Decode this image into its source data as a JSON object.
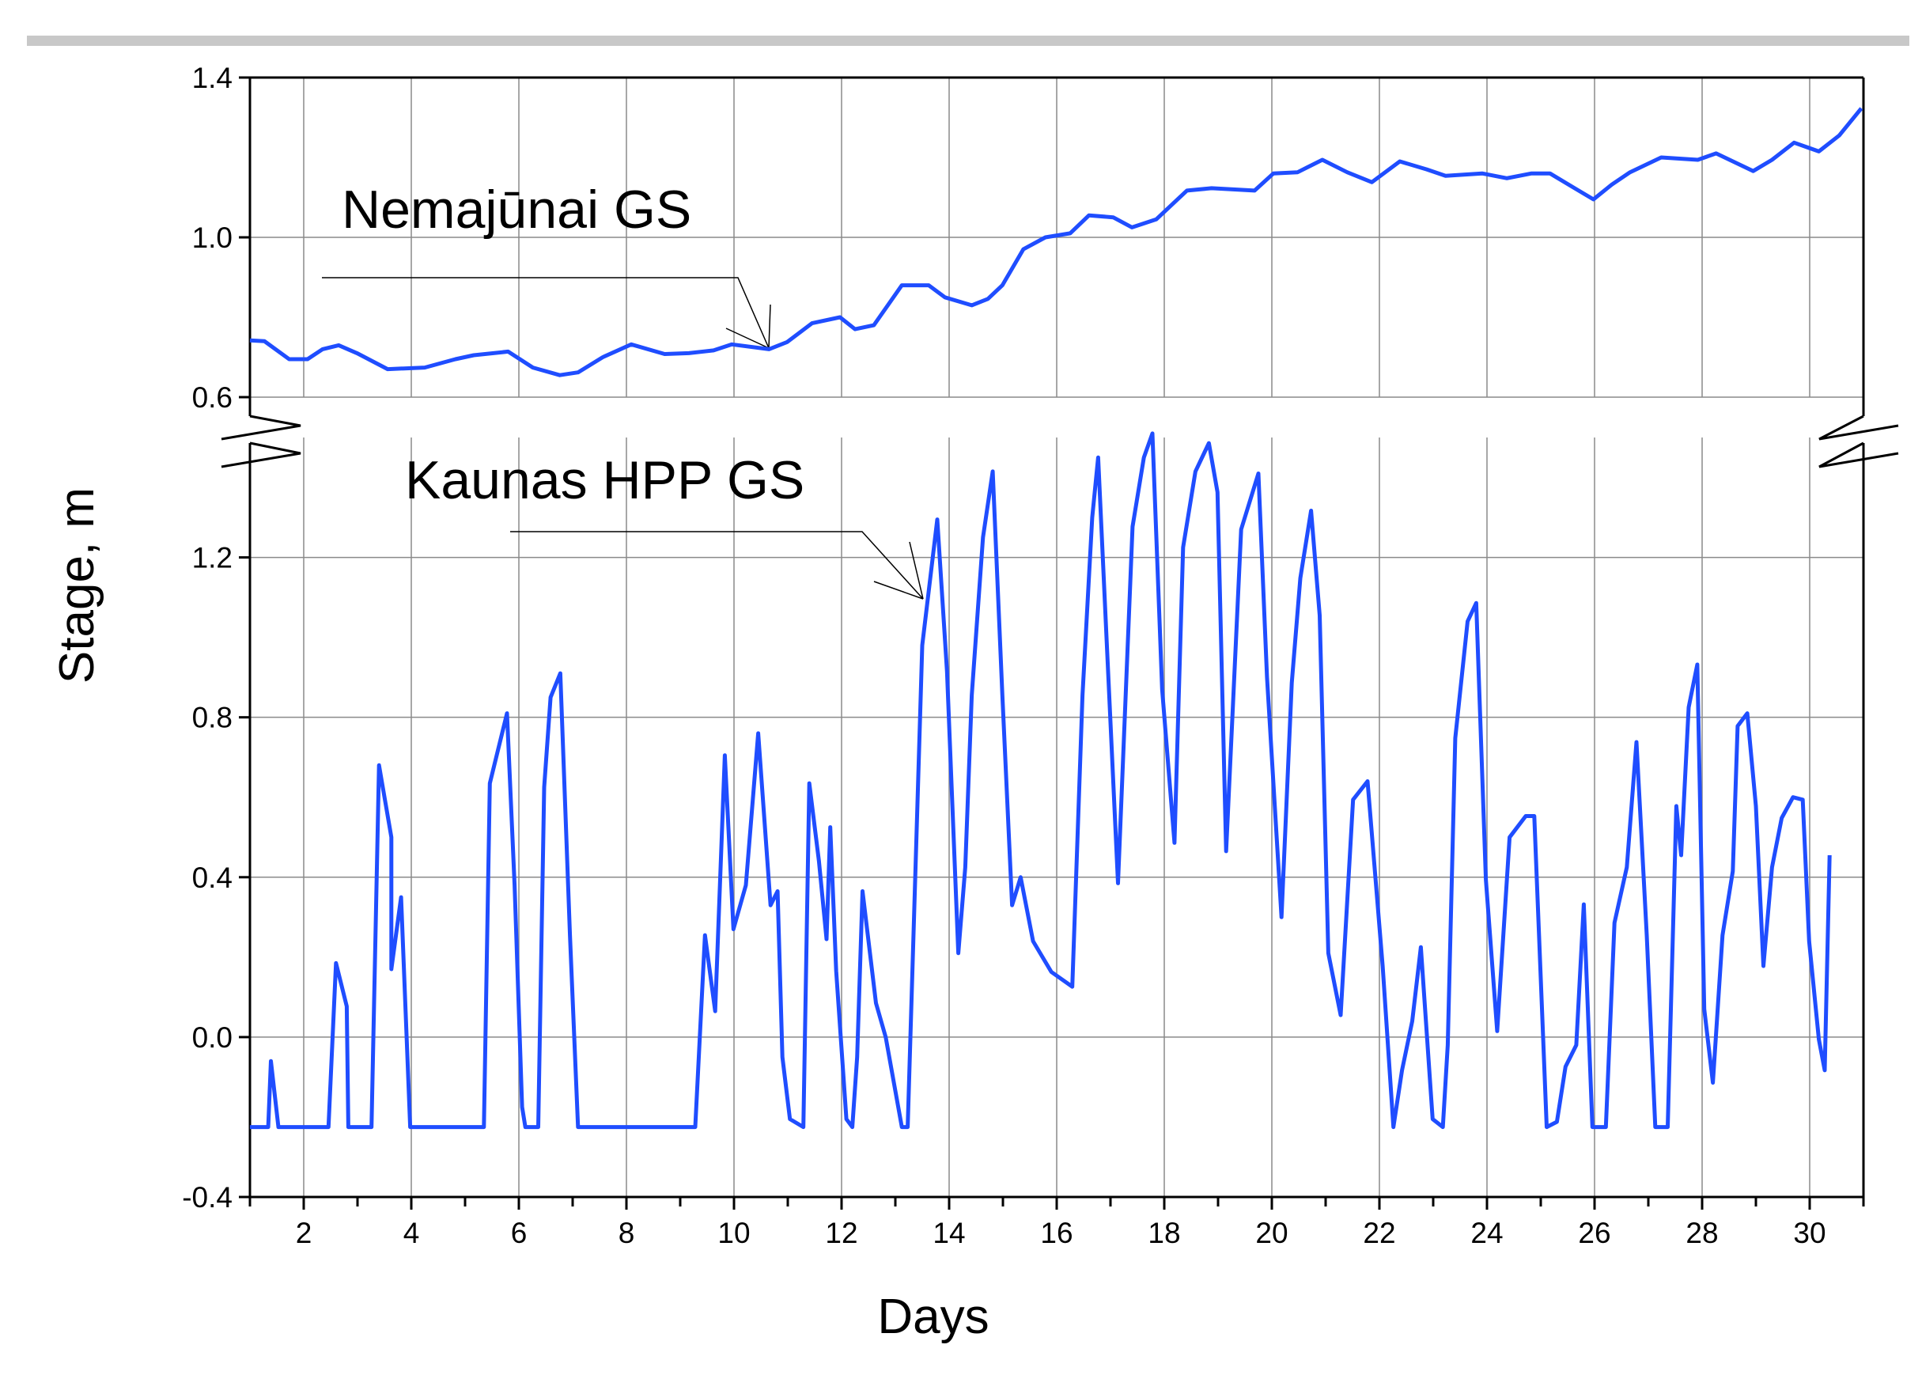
{
  "chart_data": [
    {
      "type": "line",
      "grid": true,
      "xlim": [
        1,
        31
      ],
      "ylim": [
        0.6,
        1.4
      ],
      "yticks": [
        0.6,
        {
          "value": 1.0,
          "label": "1.0"
        },
        1.4
      ],
      "x": [
        1.0,
        1.27,
        1.73,
        2.07,
        2.35,
        2.65,
        2.99,
        3.56,
        4.25,
        4.82,
        5.16,
        5.8,
        6.26,
        6.76,
        7.1,
        7.56,
        8.09,
        8.71,
        9.16,
        9.62,
        9.96,
        10.65,
        10.99,
        11.45,
        11.97,
        12.25,
        12.6,
        13.12,
        13.62,
        13.92,
        14.42,
        14.72,
        14.99,
        15.38,
        15.79,
        16.25,
        16.6,
        17.05,
        17.4,
        17.85,
        18.42,
        18.88,
        19.68,
        20.03,
        20.48,
        20.94,
        21.4,
        21.86,
        22.38,
        22.88,
        23.23,
        23.91,
        24.37,
        24.83,
        25.17,
        25.63,
        25.98,
        26.32,
        26.66,
        27.24,
        27.92,
        28.26,
        28.95,
        29.3,
        29.71,
        30.17,
        30.55,
        30.96
      ],
      "series": [
        {
          "name": "Nemajūnai GS",
          "color": "#1f4dff",
          "values": [
            0.742,
            0.74,
            0.695,
            0.695,
            0.72,
            0.73,
            0.71,
            0.67,
            0.674,
            0.695,
            0.705,
            0.714,
            0.674,
            0.655,
            0.662,
            0.7,
            0.732,
            0.708,
            0.71,
            0.717,
            0.732,
            0.72,
            0.738,
            0.785,
            0.8,
            0.77,
            0.78,
            0.88,
            0.88,
            0.85,
            0.83,
            0.846,
            0.88,
            0.97,
            1.0,
            1.01,
            1.055,
            1.05,
            1.025,
            1.045,
            1.117,
            1.123,
            1.117,
            1.16,
            1.163,
            1.194,
            1.163,
            1.138,
            1.19,
            1.17,
            1.154,
            1.16,
            1.148,
            1.16,
            1.16,
            1.123,
            1.095,
            1.132,
            1.163,
            1.2,
            1.194,
            1.21,
            1.166,
            1.194,
            1.237,
            1.215,
            1.255,
            1.323
          ]
        }
      ]
    },
    {
      "type": "line",
      "grid": true,
      "xlim": [
        1,
        31
      ],
      "ylim": [
        -0.4,
        1.5
      ],
      "xlabel": "Days",
      "ylabel": "Stage, m",
      "xticks": [
        2,
        4,
        6,
        8,
        10,
        12,
        14,
        16,
        18,
        20,
        22,
        24,
        26,
        28,
        30
      ],
      "xminorticks": [
        1,
        3,
        5,
        7,
        9,
        11,
        13,
        15,
        17,
        19,
        21,
        23,
        25,
        27,
        29,
        31
      ],
      "yticks": [
        -0.4,
        {
          "value": 0.0,
          "label": "0.0"
        },
        0.4,
        0.8,
        1.2
      ],
      "x": [
        1.0,
        1.34,
        1.39,
        1.53,
        2.46,
        2.6,
        2.8,
        2.83,
        3.26,
        3.4,
        3.63,
        3.63,
        3.81,
        3.98,
        5.35,
        5.46,
        5.78,
        5.92,
        6.06,
        6.12,
        6.36,
        6.47,
        6.59,
        6.77,
        6.95,
        7.1,
        9.28,
        9.46,
        9.65,
        9.83,
        9.99,
        10.22,
        10.45,
        10.68,
        10.81,
        10.9,
        11.04,
        11.29,
        11.4,
        11.58,
        11.72,
        11.79,
        11.9,
        12.09,
        12.2,
        12.29,
        12.39,
        12.64,
        12.82,
        13.12,
        13.23,
        13.5,
        13.78,
        13.96,
        14.17,
        14.3,
        14.42,
        14.63,
        14.81,
        14.99,
        15.17,
        15.33,
        15.56,
        15.9,
        16.29,
        16.48,
        16.66,
        16.77,
        16.93,
        17.14,
        17.41,
        17.62,
        17.78,
        17.96,
        18.19,
        18.35,
        18.58,
        18.83,
        18.99,
        19.15,
        19.43,
        19.75,
        19.91,
        20.18,
        20.37,
        20.53,
        20.73,
        20.89,
        21.05,
        21.28,
        21.51,
        21.78,
        22.06,
        22.26,
        22.42,
        22.61,
        22.77,
        22.99,
        23.18,
        23.27,
        23.41,
        23.64,
        23.8,
        23.98,
        24.19,
        24.42,
        24.72,
        24.88,
        25.11,
        25.3,
        25.46,
        25.66,
        25.8,
        25.96,
        26.21,
        26.37,
        26.6,
        26.78,
        26.97,
        27.13,
        27.36,
        27.52,
        27.61,
        27.75,
        27.91,
        28.04,
        28.2,
        28.38,
        28.57,
        28.66,
        28.84,
        29.0,
        29.14,
        29.3,
        29.48,
        29.69,
        29.87,
        29.99,
        30.17,
        30.28,
        30.37
      ],
      "series": [
        {
          "name": "Kaunas HPP GS",
          "color": "#1f4dff",
          "values": [
            -0.225,
            -0.225,
            -0.06,
            -0.225,
            -0.225,
            0.185,
            0.077,
            -0.225,
            -0.225,
            0.68,
            0.5,
            0.17,
            0.35,
            -0.225,
            -0.225,
            0.635,
            0.81,
            0.38,
            -0.175,
            -0.225,
            -0.225,
            0.625,
            0.85,
            0.91,
            0.255,
            -0.225,
            -0.225,
            0.255,
            0.065,
            0.705,
            0.27,
            0.38,
            0.76,
            0.33,
            0.365,
            -0.05,
            -0.205,
            -0.225,
            0.635,
            0.44,
            0.245,
            0.525,
            0.165,
            -0.205,
            -0.225,
            -0.05,
            0.365,
            0.085,
            0.0,
            -0.225,
            -0.225,
            0.98,
            1.295,
            0.915,
            0.21,
            0.425,
            0.855,
            1.25,
            1.415,
            0.855,
            0.33,
            0.4,
            0.24,
            0.163,
            0.126,
            0.855,
            1.3,
            1.45,
            0.99,
            0.385,
            1.277,
            1.45,
            1.51,
            0.87,
            0.486,
            1.225,
            1.415,
            1.486,
            1.363,
            0.465,
            1.27,
            1.41,
            0.9,
            0.3,
            0.886,
            1.148,
            1.317,
            1.055,
            0.21,
            0.055,
            0.594,
            0.64,
            0.178,
            -0.225,
            -0.083,
            0.04,
            0.225,
            -0.205,
            -0.225,
            -0.02,
            0.748,
            1.04,
            1.086,
            0.394,
            0.015,
            0.5,
            0.553,
            0.553,
            -0.225,
            -0.212,
            -0.074,
            -0.02,
            0.332,
            -0.225,
            -0.225,
            0.286,
            0.425,
            0.738,
            0.255,
            -0.225,
            -0.225,
            0.578,
            0.455,
            0.825,
            0.932,
            0.07,
            -0.114,
            0.255,
            0.415,
            0.778,
            0.81,
            0.578,
            0.178,
            0.425,
            0.548,
            0.6,
            0.594,
            0.24,
            -0.006,
            -0.083,
            0.455
          ]
        }
      ]
    }
  ]
}
